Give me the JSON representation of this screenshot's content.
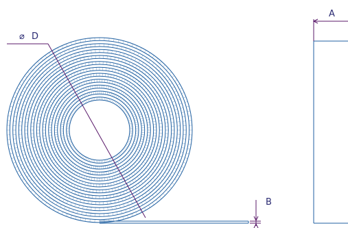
{
  "labels": {
    "diameter_symbol": "⌀",
    "diameter": "D",
    "width": "A",
    "thickness": "B"
  },
  "colors": {
    "coil": "#1f5fa0",
    "dimension": "#5a1a6a",
    "text": "#2a2a72"
  }
}
